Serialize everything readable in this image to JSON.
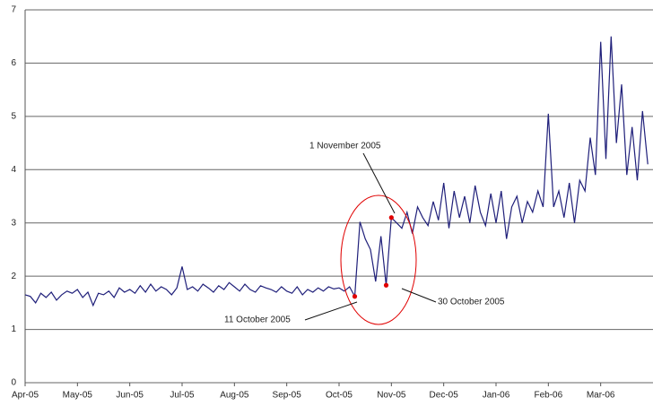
{
  "chart_data": {
    "type": "line",
    "categories": [
      "Apr-05",
      null,
      null,
      null,
      null,
      null,
      null,
      null,
      null,
      null,
      "May-05",
      null,
      null,
      null,
      null,
      null,
      null,
      null,
      null,
      null,
      "Jun-05",
      null,
      null,
      null,
      null,
      null,
      null,
      null,
      null,
      null,
      "Jul-05",
      null,
      null,
      null,
      null,
      null,
      null,
      null,
      null,
      null,
      "Aug-05",
      null,
      null,
      null,
      null,
      null,
      null,
      null,
      null,
      null,
      "Sep-05",
      null,
      null,
      null,
      null,
      null,
      null,
      null,
      null,
      null,
      "Oct-05",
      null,
      null,
      null,
      null,
      null,
      null,
      null,
      null,
      null,
      "Nov-05",
      null,
      null,
      null,
      null,
      null,
      null,
      null,
      null,
      null,
      "Dec-05",
      null,
      null,
      null,
      null,
      null,
      null,
      null,
      null,
      null,
      "Jan-06",
      null,
      null,
      null,
      null,
      null,
      null,
      null,
      null,
      null,
      "Feb-06",
      null,
      null,
      null,
      null,
      null,
      null,
      null,
      null,
      null,
      "Mar-06",
      null,
      null,
      null,
      null,
      null,
      null,
      null,
      null,
      null
    ],
    "series": [
      {
        "color": "#1f1f7a",
        "values": [
          1.65,
          1.62,
          1.5,
          1.68,
          1.6,
          1.7,
          1.55,
          1.65,
          1.72,
          1.68,
          1.75,
          1.6,
          1.7,
          1.45,
          1.68,
          1.65,
          1.72,
          1.6,
          1.78,
          1.7,
          1.75,
          1.68,
          1.82,
          1.7,
          1.85,
          1.72,
          1.8,
          1.75,
          1.65,
          1.78,
          2.18,
          1.75,
          1.8,
          1.72,
          1.85,
          1.78,
          1.7,
          1.82,
          1.75,
          1.88,
          1.8,
          1.72,
          1.85,
          1.75,
          1.7,
          1.82,
          1.78,
          1.75,
          1.7,
          1.8,
          1.72,
          1.68,
          1.8,
          1.65,
          1.75,
          1.7,
          1.78,
          1.72,
          1.8,
          1.76,
          1.78,
          1.72,
          1.8,
          1.62,
          3.02,
          2.7,
          2.5,
          1.9,
          2.75,
          1.83,
          3.1,
          3.0,
          2.9,
          3.2,
          2.8,
          3.3,
          3.1,
          2.95,
          3.4,
          3.05,
          3.75,
          2.9,
          3.6,
          3.1,
          3.5,
          3.0,
          3.7,
          3.2,
          2.95,
          3.55,
          3.0,
          3.6,
          2.7,
          3.3,
          3.5,
          3.0,
          3.4,
          3.2,
          3.6,
          3.3,
          5.05,
          3.3,
          3.6,
          3.1,
          3.75,
          3.0,
          3.8,
          3.6,
          4.6,
          3.9,
          6.4,
          4.2,
          6.5,
          4.5,
          5.6,
          3.9,
          4.8,
          3.8,
          5.1,
          4.1
        ]
      }
    ],
    "ylim": [
      0,
      7
    ],
    "yticks": [
      0,
      1,
      2,
      3,
      4,
      5,
      6,
      7
    ],
    "grid": true,
    "annotations": [
      {
        "text": "11 October 2005",
        "color": "#e00000"
      },
      {
        "text": "30 October 2005",
        "color": "#e00000"
      },
      {
        "text": "1 November 2005",
        "color": "#e00000"
      }
    ]
  }
}
